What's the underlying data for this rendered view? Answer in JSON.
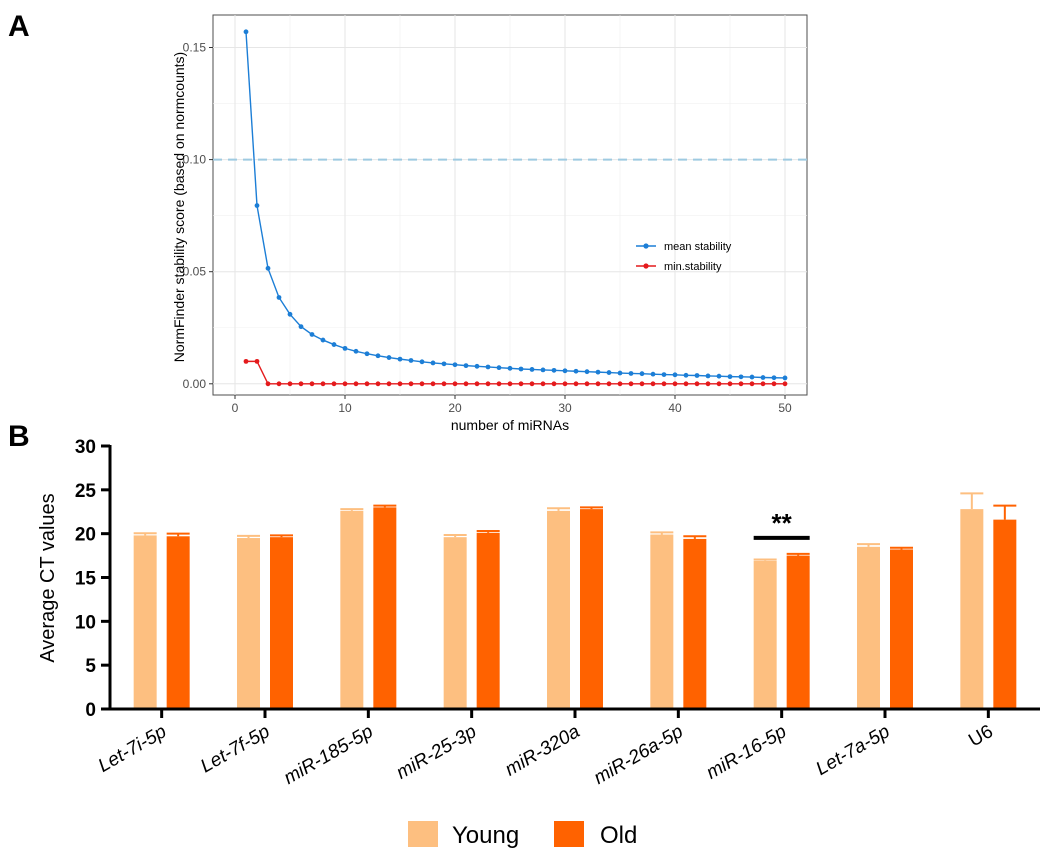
{
  "panels": {
    "a": {
      "letter": "A"
    },
    "b": {
      "letter": "B"
    }
  },
  "colors": {
    "mean": "#1c7ed6",
    "min": "#e41a1c",
    "ref_line": "#9ecae1",
    "young": "#fdbf80",
    "old": "#ff6200"
  },
  "chart_data": [
    {
      "type": "line",
      "title": "",
      "xlabel": "number of miRNAs",
      "ylabel": "NormFinder stability score (based on normcounts)",
      "xlim": [
        -2,
        52
      ],
      "ylim": [
        -0.005,
        0.1645
      ],
      "xticks": [
        0,
        10,
        20,
        30,
        40,
        50
      ],
      "yticks": [
        0.0,
        0.05,
        0.1,
        0.15
      ],
      "ytick_labels": [
        "0.00",
        "0.05",
        "0.10",
        "0.15"
      ],
      "reference_line": {
        "y": 0.1,
        "style": "dashed"
      },
      "legend": {
        "position": "right",
        "entries": [
          "mean stability",
          "min.stability"
        ]
      },
      "series": [
        {
          "name": "mean stability",
          "x": [
            1,
            2,
            3,
            4,
            5,
            6,
            7,
            8,
            9,
            10,
            11,
            12,
            13,
            14,
            15,
            16,
            17,
            18,
            19,
            20,
            21,
            22,
            23,
            24,
            25,
            26,
            27,
            28,
            29,
            30,
            31,
            32,
            33,
            34,
            35,
            36,
            37,
            38,
            39,
            40,
            41,
            42,
            43,
            44,
            45,
            46,
            47,
            48,
            49,
            50
          ],
          "values": [
            0.157,
            0.0795,
            0.0515,
            0.0385,
            0.031,
            0.0255,
            0.022,
            0.0195,
            0.0175,
            0.0158,
            0.0145,
            0.0134,
            0.0125,
            0.0117,
            0.011,
            0.0104,
            0.0098,
            0.0093,
            0.0089,
            0.0085,
            0.0081,
            0.0078,
            0.0075,
            0.0072,
            0.0069,
            0.0066,
            0.0064,
            0.0062,
            0.006,
            0.0058,
            0.0056,
            0.0054,
            0.0052,
            0.005,
            0.0048,
            0.0046,
            0.0045,
            0.0043,
            0.0041,
            0.004,
            0.0038,
            0.0037,
            0.0035,
            0.0034,
            0.0032,
            0.0031,
            0.003,
            0.0028,
            0.0027,
            0.0026
          ]
        },
        {
          "name": "min.stability",
          "x": [
            1,
            2,
            3,
            4,
            5,
            6,
            7,
            8,
            9,
            10,
            11,
            12,
            13,
            14,
            15,
            16,
            17,
            18,
            19,
            20,
            21,
            22,
            23,
            24,
            25,
            26,
            27,
            28,
            29,
            30,
            31,
            32,
            33,
            34,
            35,
            36,
            37,
            38,
            39,
            40,
            41,
            42,
            43,
            44,
            45,
            46,
            47,
            48,
            49,
            50
          ],
          "values": [
            0.01,
            0.01,
            0,
            0,
            0,
            0,
            0,
            0,
            0,
            0,
            0,
            0,
            0,
            0,
            0,
            0,
            0,
            0,
            0,
            0,
            0,
            0,
            0,
            0,
            0,
            0,
            0,
            0,
            0,
            0,
            0,
            0,
            0,
            0,
            0,
            0,
            0,
            0,
            0,
            0,
            0,
            0,
            0,
            0,
            0,
            0,
            0,
            0,
            0,
            0
          ]
        }
      ]
    },
    {
      "type": "bar",
      "title": "",
      "xlabel": "",
      "ylabel": "Average CT values",
      "ylim": [
        0,
        30
      ],
      "yticks": [
        0,
        5,
        10,
        15,
        20,
        25,
        30
      ],
      "categories": [
        "Let-7i-5p",
        "Let-7f-5p",
        "miR-185-5p",
        "miR-25-3p",
        "miR-320a",
        "miR-26a-5p",
        "miR-16-5p",
        "Let-7a-5p",
        "U6"
      ],
      "category_italic": [
        true,
        true,
        true,
        true,
        true,
        true,
        true,
        true,
        false
      ],
      "legend": {
        "position": "bottom",
        "entries": [
          "Young",
          "Old"
        ]
      },
      "series": [
        {
          "name": "Young",
          "values": [
            19.8,
            19.5,
            22.6,
            19.6,
            22.6,
            19.9,
            16.9,
            18.5,
            22.8
          ],
          "errors": [
            0.25,
            0.25,
            0.2,
            0.25,
            0.3,
            0.25,
            0.15,
            0.3,
            1.8
          ]
        },
        {
          "name": "Old",
          "values": [
            19.7,
            19.6,
            23.0,
            20.1,
            22.8,
            19.4,
            17.5,
            18.2,
            21.6
          ],
          "errors": [
            0.3,
            0.2,
            0.2,
            0.2,
            0.2,
            0.3,
            0.2,
            0.2,
            1.6
          ]
        }
      ],
      "annotations": [
        {
          "category": "miR-16-5p",
          "text": "**"
        }
      ]
    }
  ]
}
